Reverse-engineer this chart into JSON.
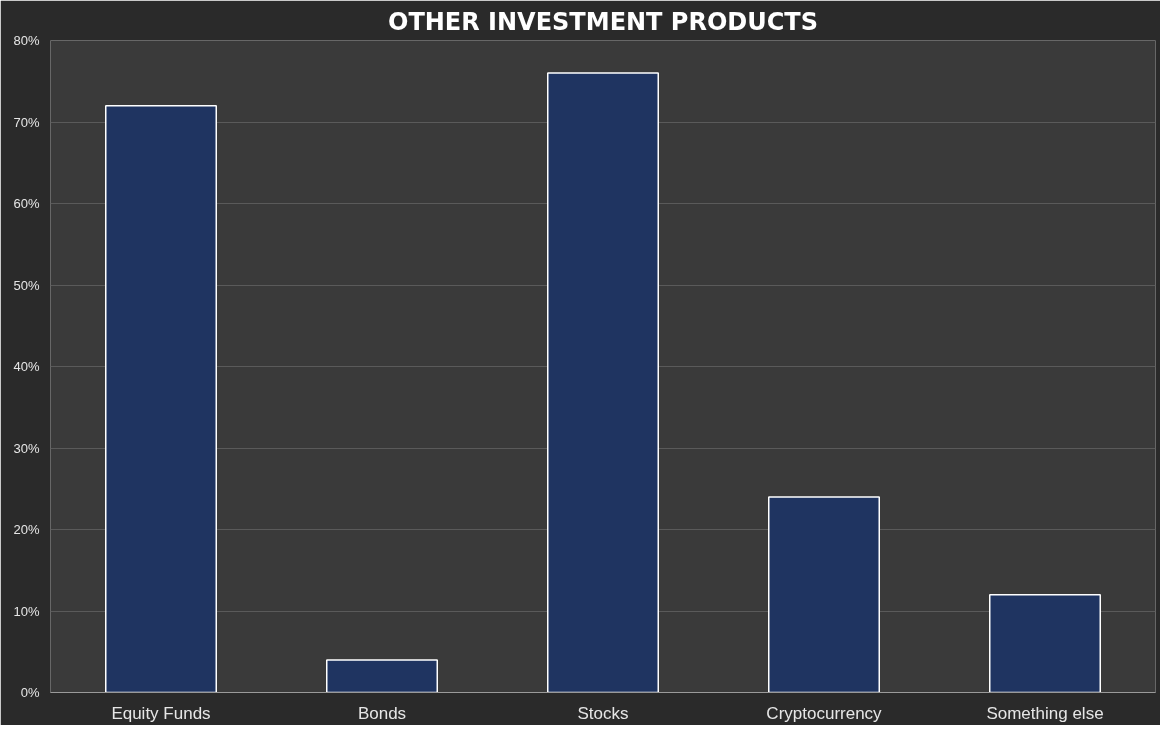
{
  "chart_data": {
    "type": "bar",
    "title": "OTHER INVESTMENT PRODUCTS",
    "categories": [
      "Equity Funds",
      "Bonds",
      "Stocks",
      "Cryptocurrency",
      "Something else"
    ],
    "values": [
      72,
      4,
      76,
      24,
      12
    ],
    "color": "#1f3461",
    "ylim": [
      0,
      80
    ],
    "yticks": [
      {
        "value": 0,
        "label": "0%"
      },
      {
        "value": 10,
        "label": "10%"
      },
      {
        "value": 20,
        "label": "20%"
      },
      {
        "value": 30,
        "label": "30%"
      },
      {
        "value": 40,
        "label": "40%"
      },
      {
        "value": 50,
        "label": "50%"
      },
      {
        "value": 60,
        "label": "60%"
      },
      {
        "value": 70,
        "label": "70%"
      },
      {
        "value": 80,
        "label": "80%"
      }
    ],
    "grid": "y"
  }
}
